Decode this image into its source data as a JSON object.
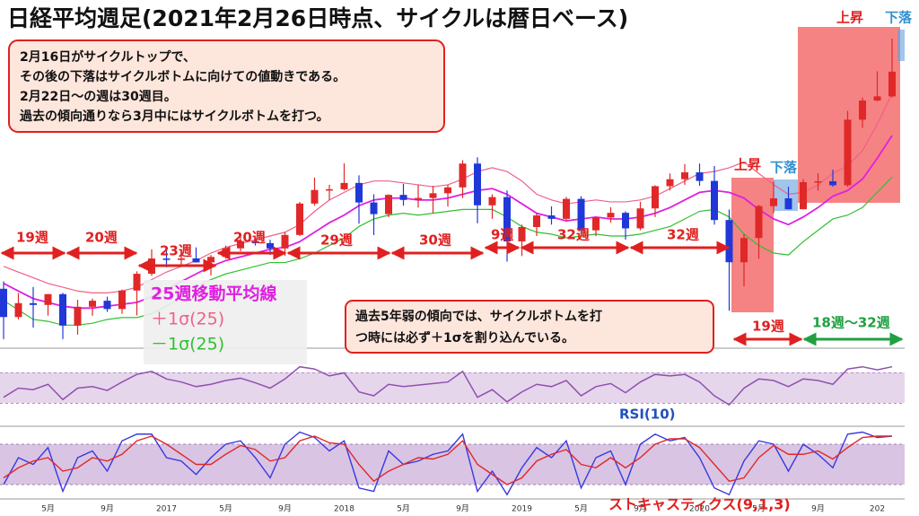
{
  "chart_data": {
    "type": "candlestick",
    "title": "日経平均週足(2021年2月26日時点、サイクルは暦日ベース)",
    "categories": [
      null,
      null,
      null,
      "5月",
      null,
      null,
      null,
      "9月",
      null,
      null,
      null,
      "2017",
      null,
      null,
      null,
      "5月",
      null,
      null,
      null,
      "9月",
      null,
      null,
      null,
      "2018",
      null,
      null,
      null,
      "5月",
      null,
      null,
      null,
      "9月",
      null,
      null,
      null,
      "2019",
      null,
      null,
      null,
      "5月",
      null,
      null,
      null,
      "9月",
      null,
      null,
      null,
      "2020",
      null,
      null,
      null,
      "5月",
      null,
      null,
      null,
      "9月",
      null,
      null,
      null,
      "202",
      null
    ],
    "ohlc": [
      [
        17518,
        17905,
        14865,
        16027
      ],
      [
        16027,
        17291,
        15900,
        16759
      ],
      [
        16759,
        17613,
        15471,
        16666
      ],
      [
        16666,
        17251,
        16100,
        17235
      ],
      [
        17235,
        17300,
        14864,
        15576
      ],
      [
        15576,
        16938,
        15100,
        16569
      ],
      [
        16569,
        17000,
        16100,
        16887
      ],
      [
        16887,
        17100,
        16300,
        16450
      ],
      [
        16450,
        17480,
        16200,
        17425
      ],
      [
        17425,
        18440,
        16110,
        18308
      ],
      [
        18308,
        19600,
        18200,
        19114
      ],
      [
        19114,
        19600,
        18650,
        19041
      ],
      [
        19041,
        19500,
        18800,
        19119
      ],
      [
        19119,
        19700,
        18900,
        18909
      ],
      [
        18909,
        19300,
        18220,
        19197
      ],
      [
        19197,
        19800,
        19100,
        19651
      ],
      [
        19651,
        20300,
        19500,
        20033
      ],
      [
        20033,
        20200,
        19800,
        19925
      ],
      [
        19925,
        20100,
        19300,
        19646
      ],
      [
        19646,
        20500,
        19250,
        20356
      ],
      [
        20356,
        22100,
        20300,
        22011
      ],
      [
        22011,
        23380,
        21900,
        22725
      ],
      [
        22725,
        23000,
        22200,
        22765
      ],
      [
        22765,
        24130,
        22700,
        23098
      ],
      [
        23098,
        23500,
        20950,
        22068
      ],
      [
        22068,
        22500,
        20350,
        21454
      ],
      [
        21454,
        22500,
        21300,
        22468
      ],
      [
        22468,
        23050,
        21900,
        22202
      ],
      [
        22202,
        23000,
        21800,
        22305
      ],
      [
        22305,
        22950,
        21500,
        22554
      ],
      [
        22554,
        23000,
        21850,
        22865
      ],
      [
        22865,
        24300,
        22300,
        24120
      ],
      [
        24120,
        24450,
        20970,
        21920
      ],
      [
        21920,
        22500,
        21200,
        22351
      ],
      [
        22351,
        22700,
        18950,
        20015
      ],
      [
        20015,
        20900,
        19240,
        20773
      ],
      [
        20773,
        21500,
        20300,
        21385
      ],
      [
        21385,
        21860,
        20900,
        21206
      ],
      [
        21206,
        22360,
        21100,
        22259
      ],
      [
        22259,
        22400,
        20550,
        20601
      ],
      [
        20601,
        21300,
        20290,
        21276
      ],
      [
        21276,
        21820,
        21000,
        21522
      ],
      [
        21522,
        21600,
        20110,
        20704
      ],
      [
        20704,
        22100,
        20600,
        21756
      ],
      [
        21756,
        22970,
        21300,
        22927
      ],
      [
        22927,
        23600,
        22700,
        23294
      ],
      [
        23294,
        24090,
        23000,
        23657
      ],
      [
        23657,
        24120,
        22950,
        23205
      ],
      [
        23205,
        23990,
        20900,
        21143
      ],
      [
        21143,
        21700,
        16360,
        18917
      ],
      [
        18917,
        20400,
        17650,
        20194
      ],
      [
        20194,
        21950,
        19100,
        21878
      ],
      [
        21878,
        23180,
        21500,
        22288
      ],
      [
        22288,
        22900,
        21700,
        21710
      ],
      [
        21710,
        23300,
        21700,
        23140
      ],
      [
        23140,
        23600,
        22700,
        23185
      ],
      [
        23185,
        23800,
        22900,
        22977
      ],
      [
        22977,
        26900,
        22900,
        26434
      ],
      [
        26434,
        27600,
        26000,
        27444
      ],
      [
        27444,
        28980,
        27400,
        27663
      ],
      [
        27663,
        30710,
        27600,
        28966
      ]
    ],
    "up_color": "#e02828",
    "down_color": "#2038d8",
    "ylim": [
      15000,
      30000
    ],
    "series": [
      {
        "name": "25週移動平均線",
        "color": "#e020e0",
        "values": [
          17800,
          17400,
          17000,
          16800,
          16600,
          16500,
          16500,
          16600,
          16700,
          16800,
          17100,
          17500,
          17900,
          18300,
          18700,
          19000,
          19200,
          19400,
          19600,
          19700,
          20000,
          20500,
          21000,
          21400,
          21900,
          22200,
          22300,
          22300,
          22200,
          22200,
          22300,
          22500,
          22700,
          22800,
          22500,
          22000,
          21500,
          21300,
          21100,
          21200,
          21300,
          21200,
          21200,
          21300,
          21500,
          21800,
          22200,
          22600,
          22700,
          22600,
          22300,
          21700,
          21200,
          20900,
          21300,
          21800,
          22400,
          22700,
          23300,
          24400,
          25600
        ]
      },
      {
        "name": "＋1σ(25)",
        "color": "#f06088",
        "values": [
          18700,
          18400,
          18100,
          17800,
          17600,
          17400,
          17300,
          17300,
          17400,
          17600,
          18000,
          18400,
          18700,
          19000,
          19400,
          19700,
          19900,
          20100,
          20300,
          20500,
          20900,
          21600,
          22200,
          22600,
          23000,
          23200,
          23200,
          23100,
          23000,
          22900,
          23000,
          23300,
          23700,
          23900,
          23700,
          23200,
          22500,
          22200,
          22000,
          22100,
          22200,
          22100,
          22100,
          22200,
          22400,
          22800,
          23200,
          23600,
          23700,
          23900,
          24200,
          23600,
          23000,
          22500,
          22600,
          23000,
          23600,
          24000,
          24800,
          26200,
          27800
        ]
      },
      {
        "name": "－1σ(25)",
        "color": "#30c030",
        "values": [
          16900,
          16400,
          15900,
          15800,
          15600,
          15600,
          15700,
          15900,
          16000,
          16000,
          16200,
          16600,
          17100,
          17600,
          18000,
          18300,
          18500,
          18700,
          18900,
          18900,
          19100,
          19400,
          19800,
          20200,
          20800,
          21200,
          21400,
          21500,
          21400,
          21500,
          21600,
          21700,
          21700,
          21700,
          21300,
          20800,
          20500,
          20400,
          20200,
          20300,
          20400,
          20300,
          20300,
          20400,
          20600,
          20800,
          21200,
          21600,
          21700,
          21300,
          20400,
          19800,
          19400,
          19300,
          20000,
          20600,
          21200,
          21400,
          21800,
          22600,
          23400
        ]
      }
    ],
    "rsi": {
      "name": "RSI(10)",
      "color": "#9050b0",
      "ylim": [
        0,
        100
      ],
      "bands": [
        30,
        70
      ],
      "values": [
        38,
        50,
        48,
        55,
        35,
        50,
        52,
        47,
        58,
        68,
        72,
        62,
        58,
        52,
        55,
        60,
        63,
        57,
        50,
        62,
        78,
        75,
        66,
        70,
        45,
        40,
        55,
        52,
        54,
        56,
        58,
        72,
        38,
        48,
        32,
        45,
        55,
        52,
        60,
        40,
        52,
        56,
        44,
        58,
        68,
        66,
        68,
        58,
        40,
        28,
        50,
        62,
        60,
        52,
        62,
        60,
        55,
        75,
        78,
        74,
        78
      ]
    },
    "stochastic": {
      "name": "ストキャスティクス(9,1,3)",
      "ylim": [
        0,
        100
      ],
      "bands": [
        20,
        80
      ],
      "k_color": "#3838e0",
      "d_color": "#e02828",
      "k": [
        20,
        60,
        50,
        75,
        10,
        60,
        70,
        40,
        85,
        95,
        95,
        60,
        55,
        35,
        60,
        80,
        85,
        60,
        30,
        80,
        98,
        90,
        70,
        85,
        15,
        10,
        70,
        50,
        55,
        65,
        70,
        95,
        10,
        40,
        5,
        45,
        75,
        60,
        85,
        15,
        60,
        70,
        20,
        80,
        95,
        85,
        90,
        60,
        15,
        5,
        55,
        85,
        80,
        40,
        80,
        65,
        45,
        95,
        98,
        90,
        92
      ],
      "d": [
        30,
        45,
        55,
        60,
        40,
        45,
        60,
        55,
        65,
        85,
        92,
        80,
        65,
        50,
        50,
        65,
        78,
        72,
        55,
        60,
        85,
        92,
        82,
        80,
        50,
        25,
        40,
        50,
        60,
        58,
        65,
        85,
        50,
        35,
        20,
        30,
        55,
        65,
        72,
        50,
        45,
        60,
        45,
        60,
        80,
        88,
        88,
        75,
        50,
        25,
        30,
        60,
        78,
        65,
        65,
        70,
        58,
        75,
        90,
        92,
        92
      ]
    },
    "notes": [
      "2月16日がサイクルトップで、",
      "その後の下落はサイクルボトムに向けての値動きである。",
      "2月22日〜の週は30週目。",
      "過去の傾向通りなら3月中にはサイクルボトムを打つ。"
    ],
    "notes2": [
      "過去5年弱の傾向では、サイクルボトムを打",
      "つ時には必ず＋1σを割り込んでいる。"
    ],
    "periods": [
      "19週",
      "20週",
      "23週",
      "20週",
      "29週",
      "30週",
      "9週",
      "32週",
      "32週",
      "19週",
      "18週〜32週"
    ],
    "phases": [
      "上昇",
      "下落",
      "上昇",
      "下落"
    ]
  }
}
